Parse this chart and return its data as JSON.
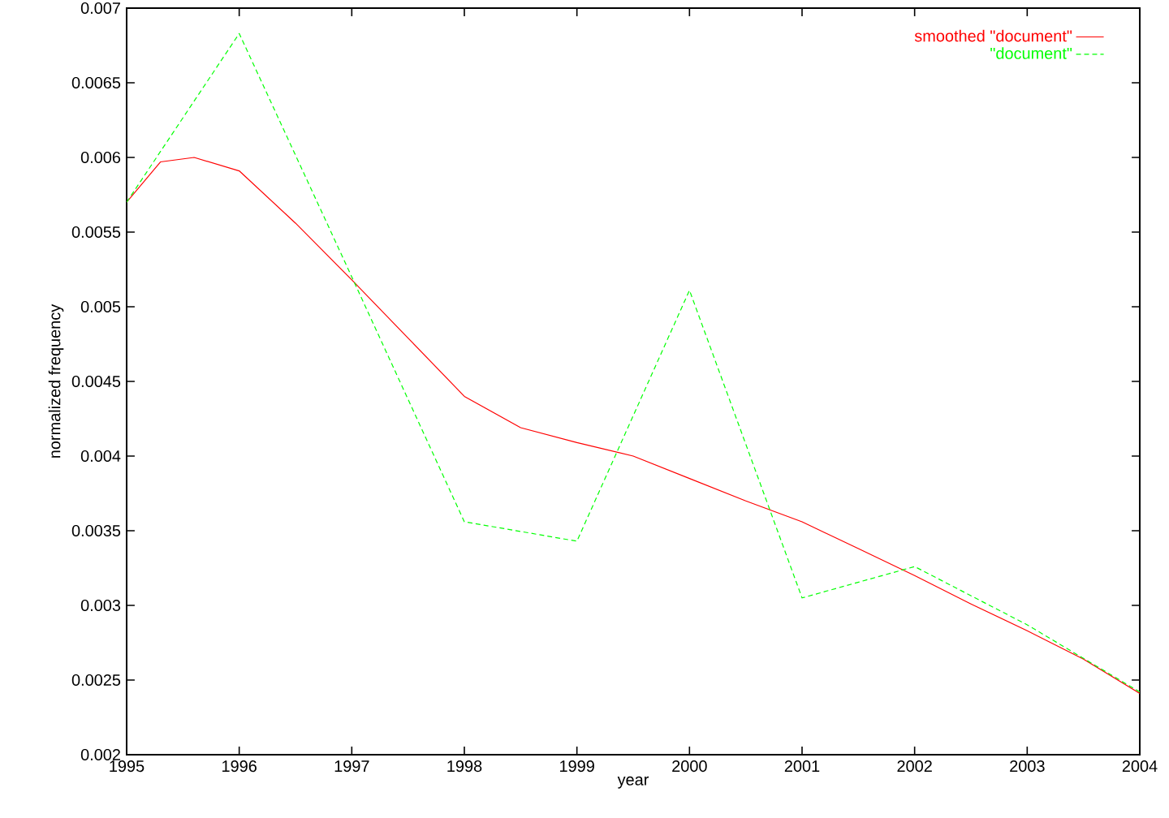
{
  "chart_data": {
    "type": "line",
    "xlabel": "year",
    "ylabel": "normalized frequency",
    "xlim": [
      1995,
      2004
    ],
    "xticks": [
      1995,
      1996,
      1997,
      1998,
      1999,
      2000,
      2001,
      2002,
      2003,
      2004
    ],
    "ylim": [
      0.002,
      0.007
    ],
    "yticks": [
      0.002,
      0.0025,
      0.003,
      0.0035,
      0.004,
      0.0045,
      0.005,
      0.0055,
      0.006,
      0.0065,
      0.007
    ],
    "legend": "top right",
    "grid": false,
    "series": [
      {
        "name": "smoothed \"document\"",
        "color": "#ff0000",
        "line_style": "solid",
        "x": [
          1995,
          1995.3,
          1995.6,
          1996,
          1996.5,
          1997,
          1997.5,
          1998,
          1998.5,
          1999,
          1999.5,
          2000,
          2000.5,
          2001,
          2001.5,
          2002,
          2002.5,
          2003,
          2003.5,
          2004
        ],
        "values": [
          0.0057,
          0.00597,
          0.006,
          0.00591,
          0.00556,
          0.00518,
          0.00479,
          0.0044,
          0.00419,
          0.00409,
          0.004,
          0.00385,
          0.0037,
          0.00356,
          0.00338,
          0.0032,
          0.00301,
          0.00283,
          0.00264,
          0.00241
        ]
      },
      {
        "name": "\"document\"",
        "color": "#00ff00",
        "line_style": "dashed",
        "x": [
          1995,
          1996,
          1997,
          1998,
          1999,
          2000,
          2001,
          2002,
          2003,
          2004
        ],
        "values": [
          0.0057,
          0.00683,
          0.0052,
          0.00356,
          0.00343,
          0.00511,
          0.00305,
          0.00326,
          0.00287,
          0.00242
        ]
      }
    ]
  }
}
